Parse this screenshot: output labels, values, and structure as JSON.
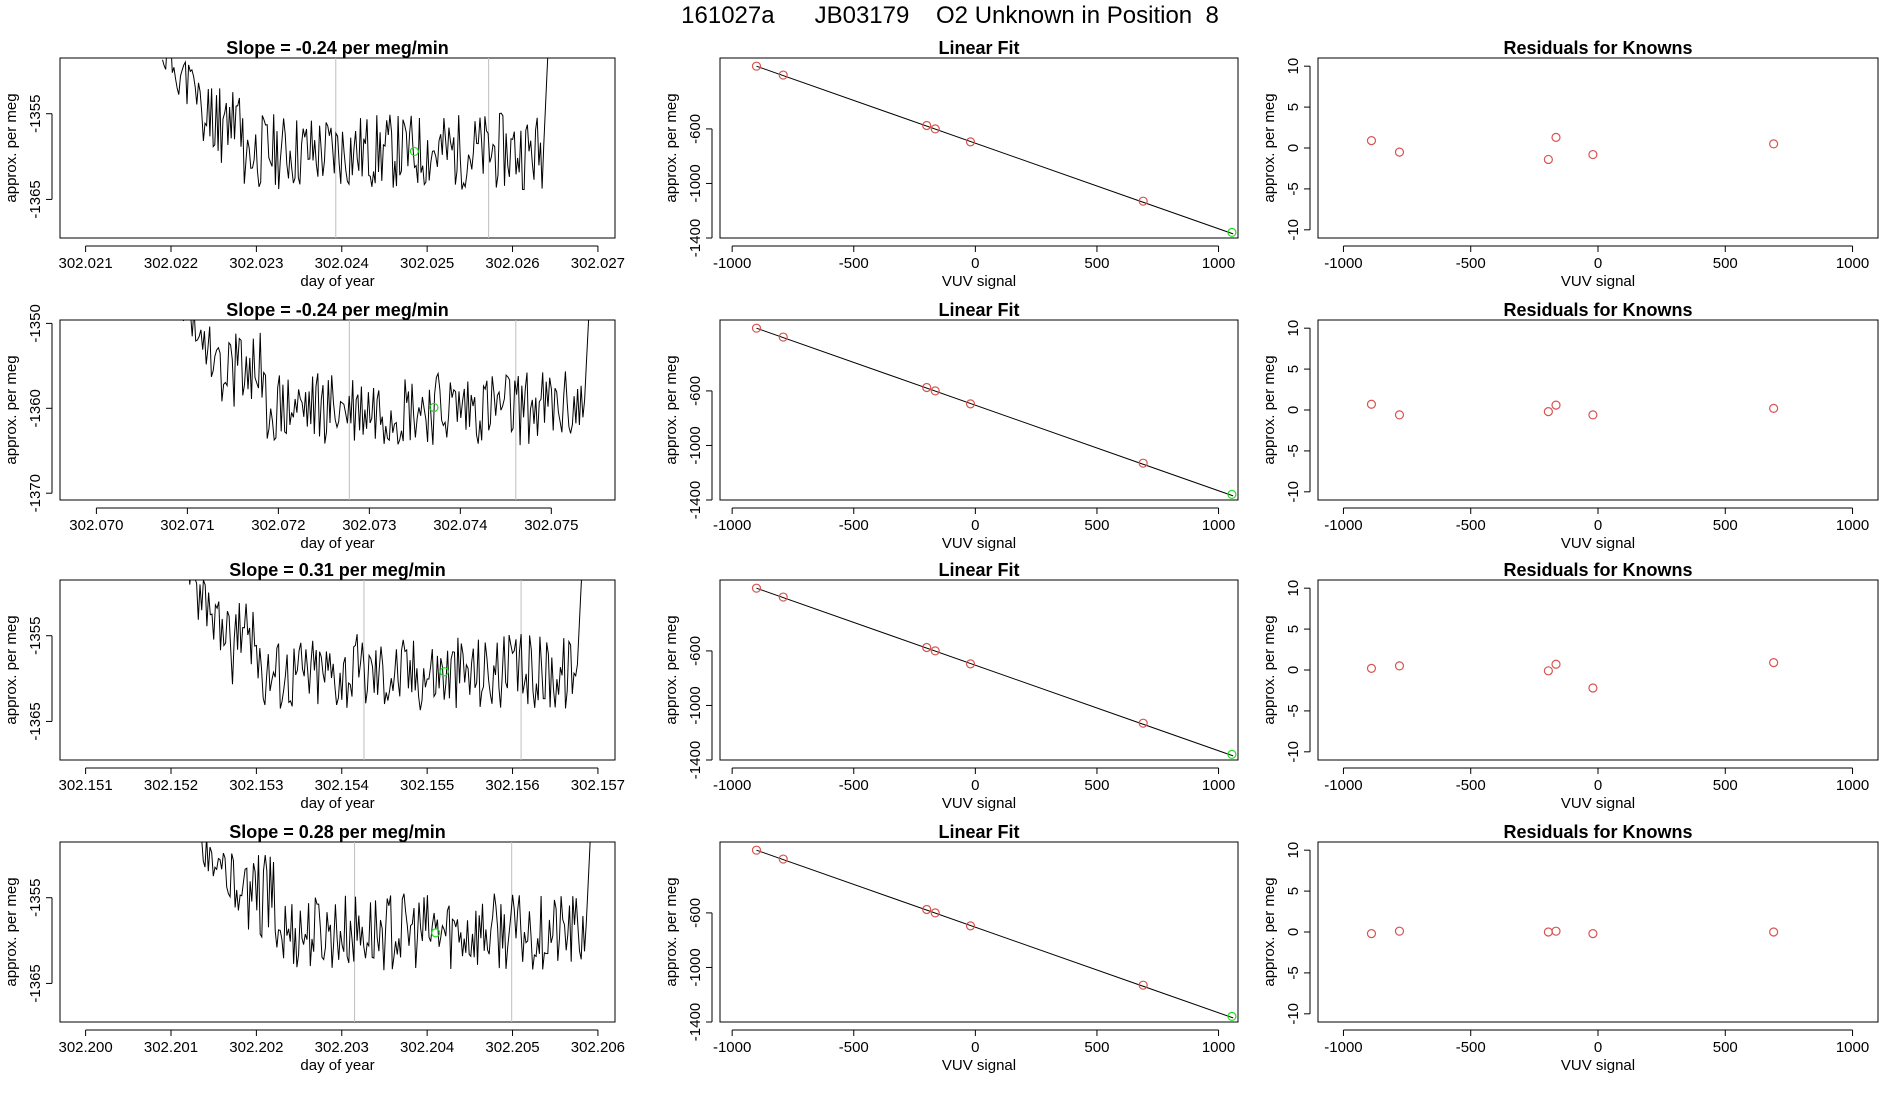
{
  "page_title": "161027a      JB03179    O2 Unknown in Position  8",
  "colors": {
    "trace": "#000000",
    "frame": "#000000",
    "vline": "#bebebe",
    "fit_line": "#000000",
    "known": "#d9534f",
    "unknown": "#22dd22"
  },
  "chart_data": [
    {
      "panel": "time-series",
      "type": "line",
      "title": "Slope =  -0.24  per meg/min",
      "xlabel": "day of year",
      "ylabel": "approx. per meg",
      "xlim": [
        302.0207,
        302.0272
      ],
      "ylim": [
        -1369.5,
        -1348.5
      ],
      "xticks": [
        "302.021",
        "302.022",
        "302.023",
        "302.024",
        "302.025",
        "302.026",
        "302.027"
      ],
      "yticks": [
        "-1355",
        "-1365"
      ],
      "start": 302.0219,
      "end": 302.0265,
      "base": -1359.4,
      "seed": 11,
      "vlines": [
        302.02393,
        302.02572
      ],
      "unknown_point": {
        "x": 302.02485,
        "y": -1359.4
      }
    },
    {
      "panel": "linear-fit",
      "type": "scatter",
      "title": "Linear Fit",
      "xlabel": "VUV signal",
      "ylabel": "approx. per meg",
      "xlim": [
        -1050,
        1080
      ],
      "ylim": [
        -1400,
        -80
      ],
      "xticks": [
        "-1000",
        "-500",
        "0",
        "500",
        "1000"
      ],
      "yticks": [
        "-600",
        "-1000",
        "-1400"
      ],
      "fit": {
        "x": [
          -900,
          1060
        ],
        "y": [
          -140,
          -1370
        ]
      },
      "knowns": {
        "x": [
          -900,
          -790,
          -200,
          -165,
          -20,
          690
        ],
        "y": [
          -140,
          -205,
          -575,
          -600,
          -695,
          -1130
        ]
      },
      "unknown": {
        "x": 1055,
        "y": -1359
      }
    },
    {
      "panel": "residuals",
      "type": "scatter",
      "title": "Residuals for Knowns",
      "xlabel": "VUV signal",
      "ylabel": "approx. per meg",
      "xlim": [
        -1100,
        1100
      ],
      "ylim": [
        -11,
        11
      ],
      "xticks": [
        "-1000",
        "-500",
        "0",
        "500",
        "1000"
      ],
      "yticks": [
        "10",
        "5",
        "0",
        "-5",
        "-10"
      ],
      "x": [
        -890,
        -780,
        -195,
        -165,
        -20,
        690
      ],
      "y": [
        0.9,
        -0.5,
        -1.4,
        1.3,
        -0.8,
        0.5
      ]
    },
    {
      "panel": "time-series",
      "type": "line",
      "title": "Slope =  -0.24  per meg/min",
      "xlabel": "day of year",
      "ylabel": "approx. per meg",
      "xlim": [
        302.0696,
        302.0757
      ],
      "ylim": [
        -1370.8,
        -1349.6
      ],
      "xticks": [
        "302.070",
        "302.071",
        "302.072",
        "302.073",
        "302.074",
        "302.075"
      ],
      "yticks": [
        "-1350",
        "-1360",
        "-1370"
      ],
      "start": 302.0709,
      "end": 302.0755,
      "base": -1359.9,
      "seed": 23,
      "vlines": [
        302.07278,
        302.07461
      ],
      "unknown_point": {
        "x": 302.07371,
        "y": -1359.9
      }
    },
    {
      "panel": "linear-fit",
      "type": "scatter",
      "title": "Linear Fit",
      "xlabel": "VUV signal",
      "ylabel": "approx. per meg",
      "xlim": [
        -1050,
        1080
      ],
      "ylim": [
        -1400,
        -80
      ],
      "xticks": [
        "-1000",
        "-500",
        "0",
        "500",
        "1000"
      ],
      "yticks": [
        "-600",
        "-1000",
        "-1400"
      ],
      "fit": {
        "x": [
          -900,
          1060
        ],
        "y": [
          -140,
          -1370
        ]
      },
      "knowns": {
        "x": [
          -900,
          -790,
          -200,
          -165,
          -20,
          690
        ],
        "y": [
          -140,
          -205,
          -575,
          -600,
          -695,
          -1130
        ]
      },
      "unknown": {
        "x": 1055,
        "y": -1359
      }
    },
    {
      "panel": "residuals",
      "type": "scatter",
      "title": "Residuals for Knowns",
      "xlabel": "VUV signal",
      "ylabel": "approx. per meg",
      "xlim": [
        -1100,
        1100
      ],
      "ylim": [
        -11,
        11
      ],
      "xticks": [
        "-1000",
        "-500",
        "0",
        "500",
        "1000"
      ],
      "yticks": [
        "10",
        "5",
        "0",
        "-5",
        "-10"
      ],
      "x": [
        -890,
        -780,
        -195,
        -165,
        -20,
        690
      ],
      "y": [
        0.7,
        -0.6,
        -0.2,
        0.6,
        -0.6,
        0.2
      ]
    },
    {
      "panel": "time-series",
      "type": "line",
      "title": "Slope =  0.31  per meg/min",
      "xlabel": "day of year",
      "ylabel": "approx. per meg",
      "xlim": [
        302.1507,
        302.1572
      ],
      "ylim": [
        -1369.5,
        -1348.5
      ],
      "xticks": [
        "302.151",
        "302.152",
        "302.153",
        "302.154",
        "302.155",
        "302.156",
        "302.157"
      ],
      "yticks": [
        "-1355",
        "-1365"
      ],
      "start": 302.1521,
      "end": 302.1569,
      "base": -1359.2,
      "seed": 37,
      "vlines": [
        302.15426,
        302.1561
      ],
      "unknown_point": {
        "x": 302.1552,
        "y": -1359.2
      }
    },
    {
      "panel": "linear-fit",
      "type": "scatter",
      "title": "Linear Fit",
      "xlabel": "VUV signal",
      "ylabel": "approx. per meg",
      "xlim": [
        -1050,
        1080
      ],
      "ylim": [
        -1400,
        -80
      ],
      "xticks": [
        "-1000",
        "-500",
        "0",
        "500",
        "1000"
      ],
      "yticks": [
        "-600",
        "-1000",
        "-1400"
      ],
      "fit": {
        "x": [
          -900,
          1060
        ],
        "y": [
          -140,
          -1370
        ]
      },
      "knowns": {
        "x": [
          -900,
          -790,
          -200,
          -165,
          -20,
          690
        ],
        "y": [
          -140,
          -205,
          -575,
          -600,
          -695,
          -1130
        ]
      },
      "unknown": {
        "x": 1055,
        "y": -1359
      }
    },
    {
      "panel": "residuals",
      "type": "scatter",
      "title": "Residuals for Knowns",
      "xlabel": "VUV signal",
      "ylabel": "approx. per meg",
      "xlim": [
        -1100,
        1100
      ],
      "ylim": [
        -11,
        11
      ],
      "xticks": [
        "-1000",
        "-500",
        "0",
        "500",
        "1000"
      ],
      "yticks": [
        "10",
        "5",
        "0",
        "-5",
        "-10"
      ],
      "x": [
        -890,
        -780,
        -195,
        -165,
        -20,
        690
      ],
      "y": [
        0.2,
        0.5,
        -0.1,
        0.7,
        -2.2,
        0.9
      ]
    },
    {
      "panel": "time-series",
      "type": "line",
      "title": "Slope =  0.28  per meg/min",
      "xlabel": "day of year",
      "ylabel": "approx. per meg",
      "xlim": [
        302.1997,
        302.2062
      ],
      "ylim": [
        -1369.5,
        -1348.5
      ],
      "xticks": [
        "302.200",
        "302.201",
        "302.202",
        "302.203",
        "302.204",
        "302.205",
        "302.206"
      ],
      "yticks": [
        "-1355",
        "-1365"
      ],
      "start": 302.2013,
      "end": 302.206,
      "base": -1359.0,
      "seed": 53,
      "vlines": [
        302.20315,
        302.20499
      ],
      "unknown_point": {
        "x": 302.2041,
        "y": -1359.1
      }
    },
    {
      "panel": "linear-fit",
      "type": "scatter",
      "title": "Linear Fit",
      "xlabel": "VUV signal",
      "ylabel": "approx. per meg",
      "xlim": [
        -1050,
        1080
      ],
      "ylim": [
        -1400,
        -80
      ],
      "xticks": [
        "-1000",
        "-500",
        "0",
        "500",
        "1000"
      ],
      "yticks": [
        "-600",
        "-1000",
        "-1400"
      ],
      "fit": {
        "x": [
          -900,
          1060
        ],
        "y": [
          -140,
          -1370
        ]
      },
      "knowns": {
        "x": [
          -900,
          -790,
          -200,
          -165,
          -20,
          690
        ],
        "y": [
          -140,
          -205,
          -575,
          -600,
          -695,
          -1130
        ]
      },
      "unknown": {
        "x": 1055,
        "y": -1359
      }
    },
    {
      "panel": "residuals",
      "type": "scatter",
      "title": "Residuals for Knowns",
      "xlabel": "VUV signal",
      "ylabel": "approx. per meg",
      "xlim": [
        -1100,
        1100
      ],
      "ylim": [
        -11,
        11
      ],
      "xticks": [
        "-1000",
        "-500",
        "0",
        "500",
        "1000"
      ],
      "yticks": [
        "10",
        "5",
        "0",
        "-5",
        "-10"
      ],
      "x": [
        -890,
        -780,
        -195,
        -165,
        -20,
        690
      ],
      "y": [
        -0.2,
        0.1,
        0.0,
        0.1,
        -0.2,
        0.0
      ]
    }
  ]
}
